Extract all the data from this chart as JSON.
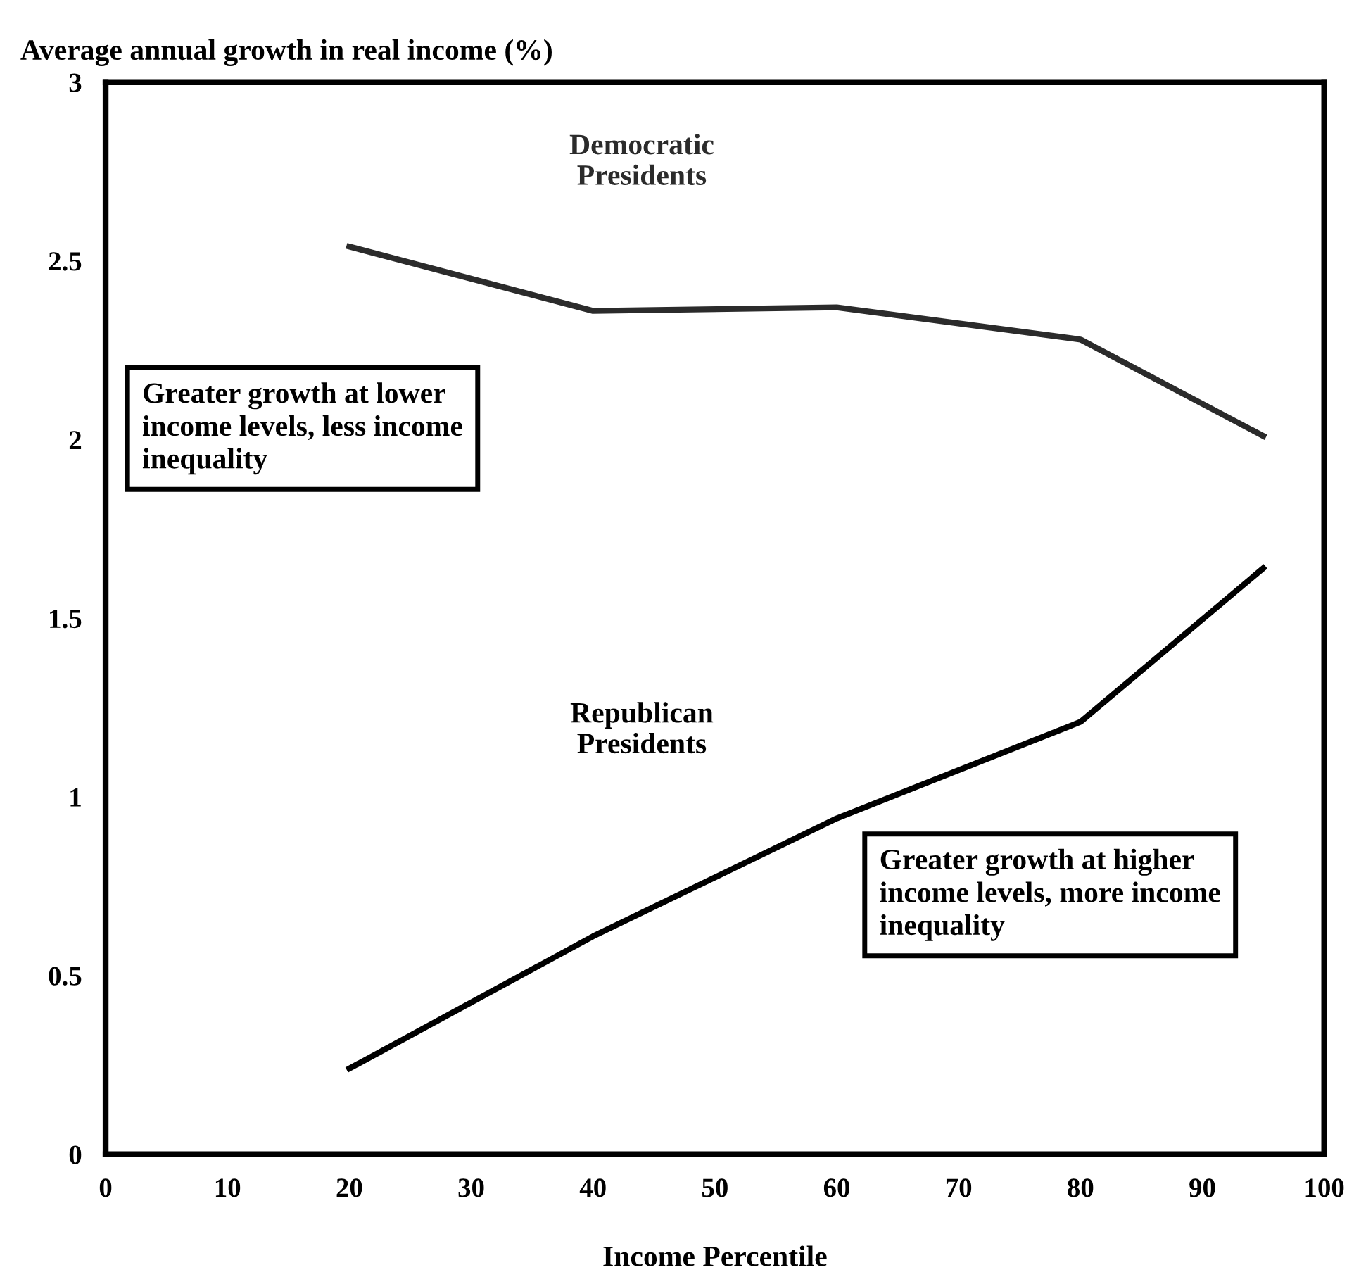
{
  "chart_data": {
    "type": "line",
    "x": [
      20,
      40,
      60,
      80,
      95
    ],
    "series": [
      {
        "name": "Democratic Presidents",
        "color": "#2b2b2b",
        "values": [
          2.54,
          2.36,
          2.37,
          2.28,
          2.01
        ]
      },
      {
        "name": "Republican Presidents",
        "color": "#000000",
        "values": [
          0.24,
          0.61,
          0.94,
          1.21,
          1.64
        ]
      }
    ],
    "xlabel": "Income Percentile",
    "ylabel": "Average annual growth in real income (%)",
    "xlim": [
      0,
      100
    ],
    "xticks": [
      0,
      10,
      20,
      30,
      40,
      50,
      60,
      70,
      80,
      90,
      100
    ],
    "ylim": [
      0,
      3
    ],
    "yticks": [
      0,
      0.5,
      1,
      1.5,
      2,
      2.5,
      3
    ],
    "annotations": [
      "Greater growth at lower income levels, less income inequality",
      "Greater growth at higher income levels, more income inequality"
    ],
    "grid": false,
    "legend": false,
    "marker": "none",
    "line_style": "solid"
  }
}
